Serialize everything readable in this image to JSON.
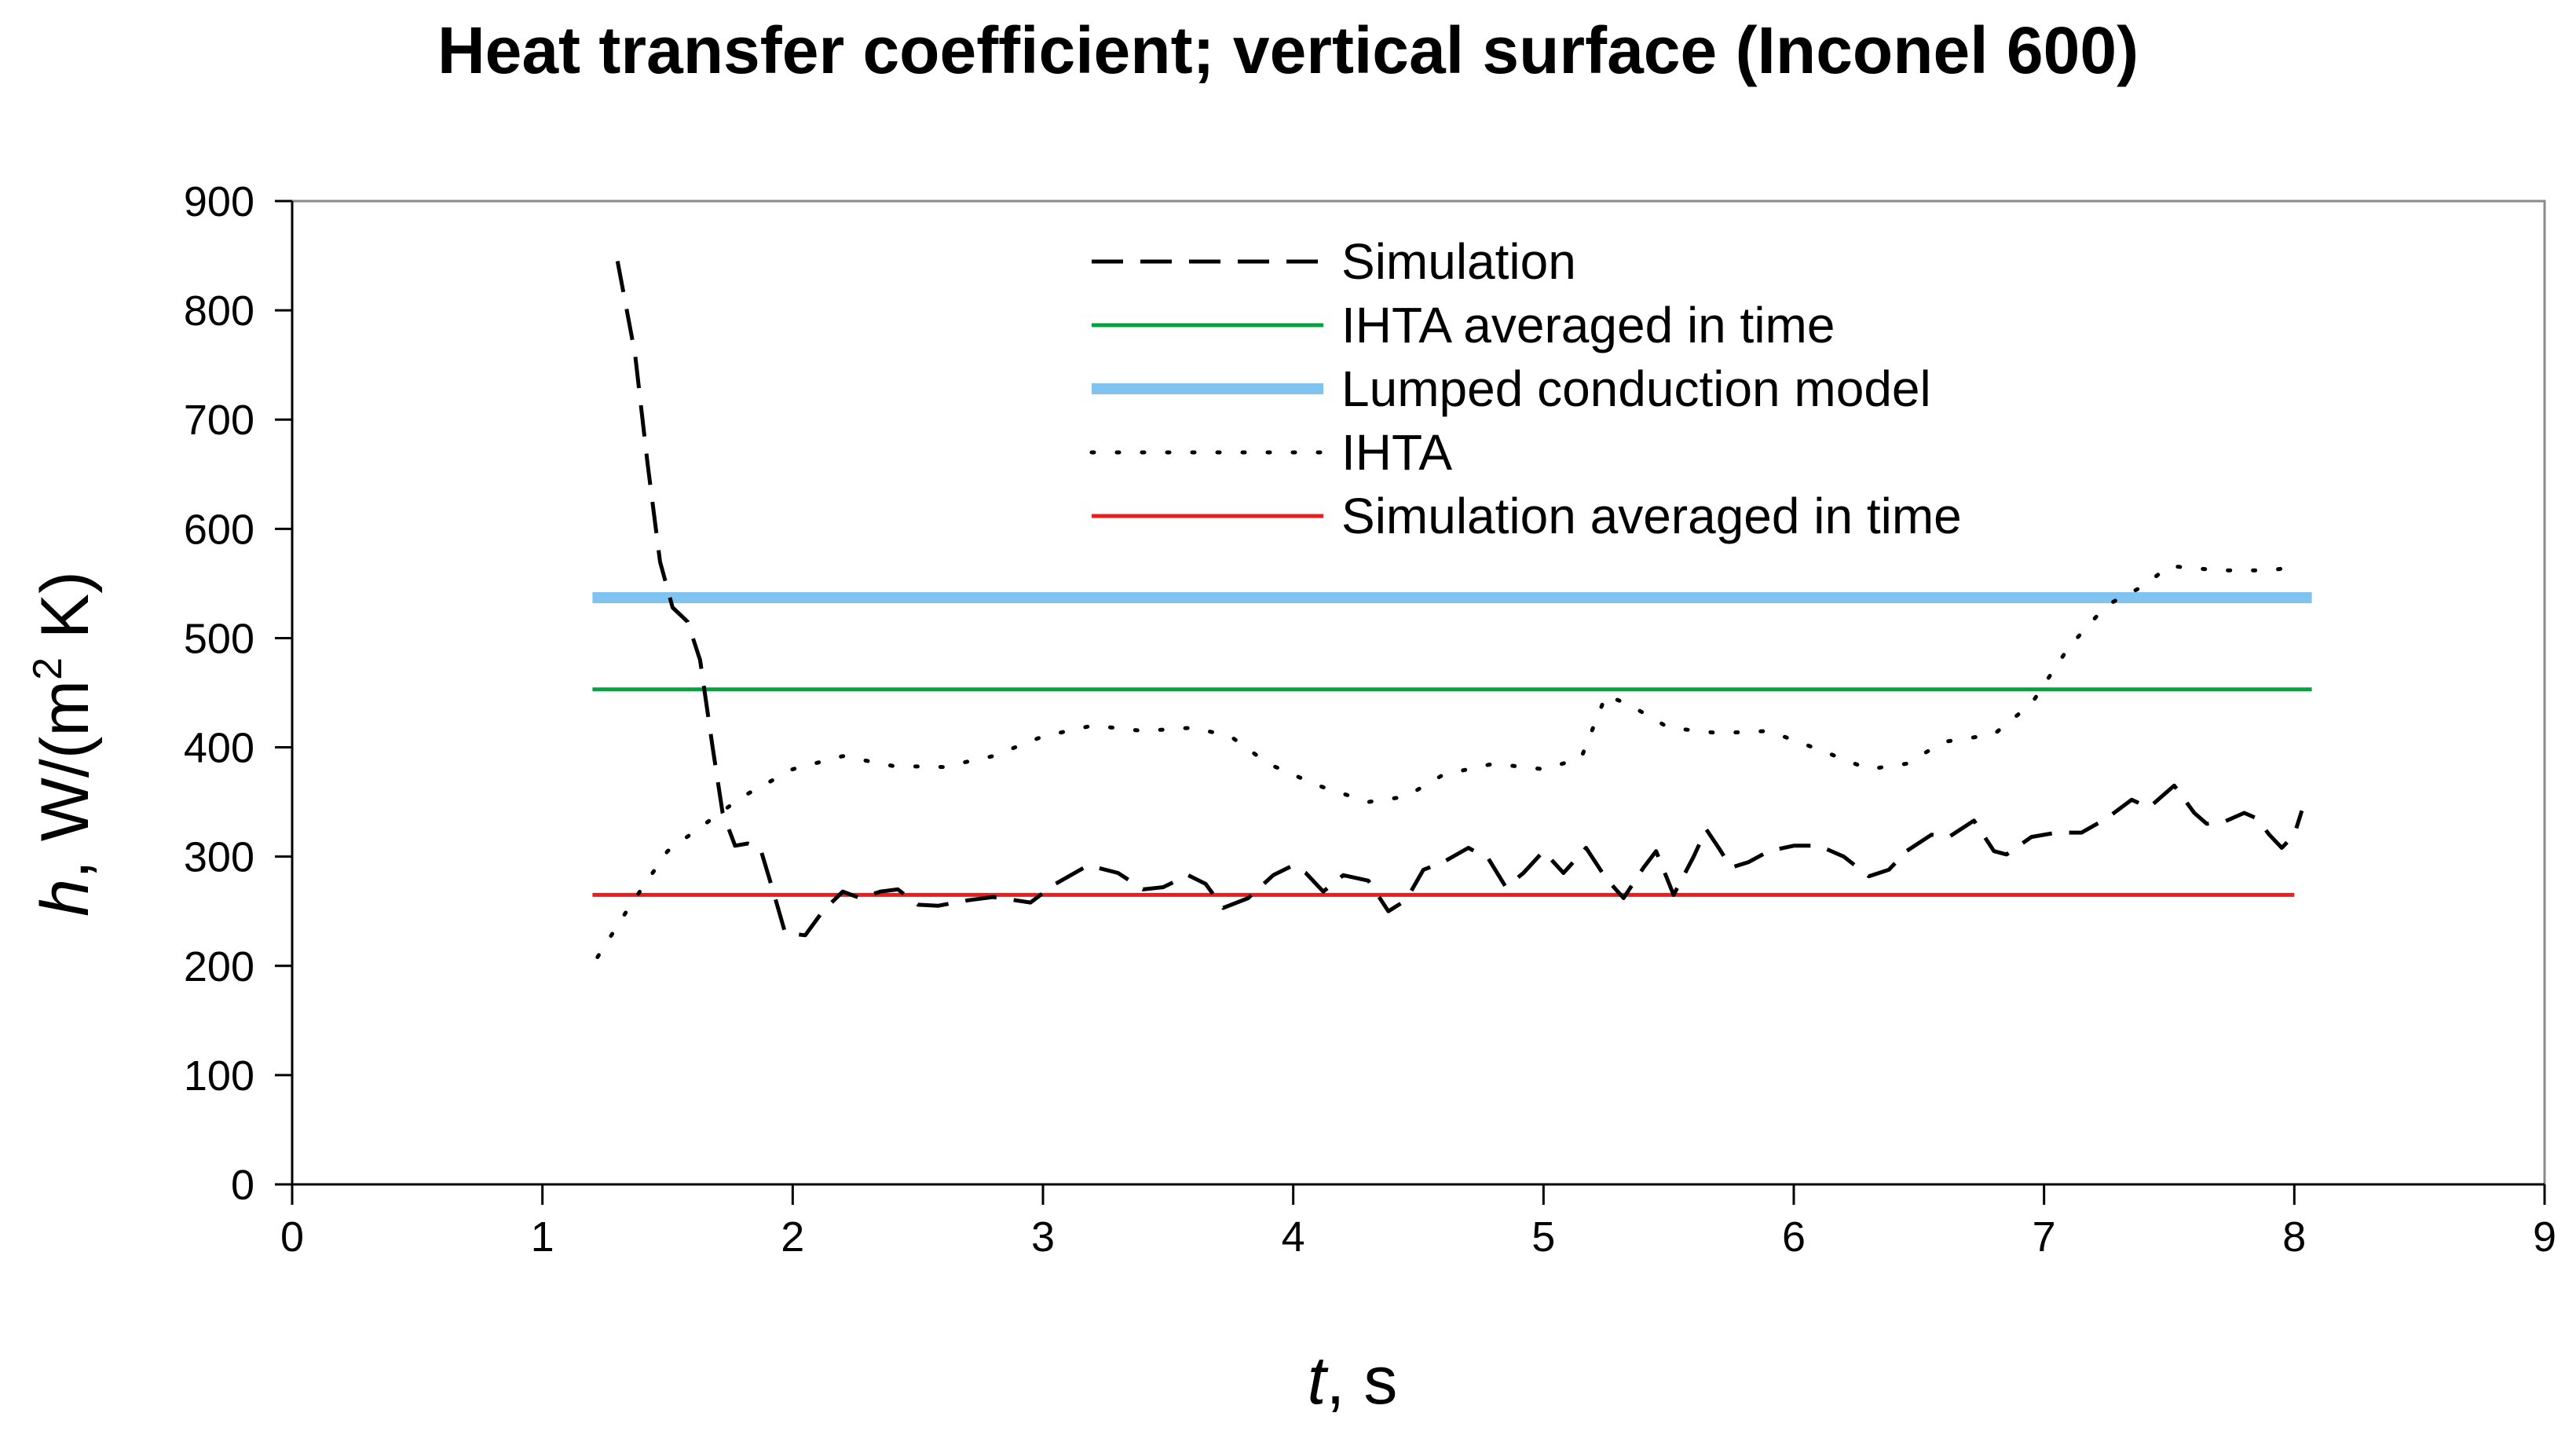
{
  "chart_data": {
    "type": "line",
    "title": "Heat transfer coefficient; vertical surface (Inconel 600)",
    "xlabel": {
      "var": "t",
      "rest": ", s"
    },
    "ylabel": {
      "var": "h",
      "rest1": ", W/(m",
      "sup": "2",
      "rest2": " K)"
    },
    "xlim": [
      0,
      9
    ],
    "ylim": [
      0,
      900
    ],
    "xticks": [
      0,
      1,
      2,
      3,
      4,
      5,
      6,
      7,
      8,
      9
    ],
    "yticks": [
      0,
      100,
      200,
      300,
      400,
      500,
      600,
      700,
      800,
      900
    ],
    "grid": false,
    "legend_position": "top-center",
    "series": [
      {
        "name": "Simulation",
        "style": "dashed",
        "color": "#000000",
        "points": [
          [
            1.3,
            845
          ],
          [
            1.37,
            760
          ],
          [
            1.42,
            660
          ],
          [
            1.47,
            570
          ],
          [
            1.52,
            528
          ],
          [
            1.58,
            515
          ],
          [
            1.63,
            480
          ],
          [
            1.68,
            400
          ],
          [
            1.72,
            340
          ],
          [
            1.77,
            310
          ],
          [
            1.82,
            312
          ],
          [
            1.87,
            308
          ],
          [
            1.92,
            270
          ],
          [
            1.97,
            230
          ],
          [
            2.05,
            228
          ],
          [
            2.12,
            250
          ],
          [
            2.2,
            268
          ],
          [
            2.27,
            262
          ],
          [
            2.35,
            268
          ],
          [
            2.42,
            270
          ],
          [
            2.5,
            256
          ],
          [
            2.58,
            255
          ],
          [
            2.7,
            260
          ],
          [
            2.8,
            263
          ],
          [
            2.95,
            258
          ],
          [
            3.05,
            275
          ],
          [
            3.18,
            292
          ],
          [
            3.3,
            285
          ],
          [
            3.4,
            270
          ],
          [
            3.48,
            272
          ],
          [
            3.58,
            283
          ],
          [
            3.65,
            275
          ],
          [
            3.72,
            253
          ],
          [
            3.82,
            262
          ],
          [
            3.92,
            283
          ],
          [
            4.0,
            292
          ],
          [
            4.05,
            285
          ],
          [
            4.12,
            268
          ],
          [
            4.2,
            283
          ],
          [
            4.3,
            278
          ],
          [
            4.38,
            250
          ],
          [
            4.45,
            260
          ],
          [
            4.52,
            288
          ],
          [
            4.6,
            295
          ],
          [
            4.7,
            308
          ],
          [
            4.78,
            298
          ],
          [
            4.85,
            272
          ],
          [
            4.92,
            285
          ],
          [
            5.0,
            305
          ],
          [
            5.08,
            285
          ],
          [
            5.17,
            308
          ],
          [
            5.25,
            280
          ],
          [
            5.32,
            262
          ],
          [
            5.4,
            290
          ],
          [
            5.45,
            305
          ],
          [
            5.52,
            265
          ],
          [
            5.6,
            300
          ],
          [
            5.65,
            325
          ],
          [
            5.7,
            308
          ],
          [
            5.75,
            290
          ],
          [
            5.82,
            295
          ],
          [
            5.9,
            305
          ],
          [
            6.0,
            310
          ],
          [
            6.1,
            310
          ],
          [
            6.2,
            300
          ],
          [
            6.3,
            282
          ],
          [
            6.38,
            288
          ],
          [
            6.45,
            305
          ],
          [
            6.55,
            320
          ],
          [
            6.62,
            318
          ],
          [
            6.72,
            333
          ],
          [
            6.8,
            305
          ],
          [
            6.85,
            302
          ],
          [
            6.95,
            318
          ],
          [
            7.05,
            322
          ],
          [
            7.15,
            322
          ],
          [
            7.25,
            335
          ],
          [
            7.35,
            352
          ],
          [
            7.42,
            345
          ],
          [
            7.52,
            365
          ],
          [
            7.6,
            340
          ],
          [
            7.65,
            330
          ],
          [
            7.72,
            332
          ],
          [
            7.8,
            340
          ],
          [
            7.85,
            335
          ],
          [
            7.9,
            320
          ],
          [
            7.95,
            308
          ],
          [
            8.0,
            320
          ],
          [
            8.03,
            342
          ]
        ]
      },
      {
        "name": "IHTA averaged in time",
        "style": "solid",
        "color": "#00a33c",
        "points": [
          [
            1.2,
            453
          ],
          [
            8.07,
            453
          ]
        ]
      },
      {
        "name": "Lumped conduction model",
        "style": "thick",
        "color": "#7fc3f0",
        "points": [
          [
            1.2,
            537
          ],
          [
            8.07,
            537
          ]
        ]
      },
      {
        "name": "IHTA",
        "style": "dotted",
        "color": "#000000",
        "points": [
          [
            1.22,
            208
          ],
          [
            1.35,
            255
          ],
          [
            1.5,
            305
          ],
          [
            1.65,
            330
          ],
          [
            1.8,
            355
          ],
          [
            2.0,
            380
          ],
          [
            2.2,
            392
          ],
          [
            2.4,
            383
          ],
          [
            2.6,
            382
          ],
          [
            2.8,
            392
          ],
          [
            3.0,
            410
          ],
          [
            3.2,
            420
          ],
          [
            3.4,
            415
          ],
          [
            3.6,
            418
          ],
          [
            3.75,
            410
          ],
          [
            3.9,
            385
          ],
          [
            4.1,
            365
          ],
          [
            4.3,
            350
          ],
          [
            4.45,
            355
          ],
          [
            4.6,
            375
          ],
          [
            4.8,
            385
          ],
          [
            5.0,
            380
          ],
          [
            5.15,
            390
          ],
          [
            5.25,
            448
          ],
          [
            5.35,
            438
          ],
          [
            5.5,
            418
          ],
          [
            5.7,
            413
          ],
          [
            5.9,
            415
          ],
          [
            6.1,
            398
          ],
          [
            6.3,
            380
          ],
          [
            6.45,
            385
          ],
          [
            6.6,
            405
          ],
          [
            6.8,
            412
          ],
          [
            6.95,
            440
          ],
          [
            7.1,
            492
          ],
          [
            7.25,
            530
          ],
          [
            7.4,
            548
          ],
          [
            7.5,
            566
          ],
          [
            7.7,
            562
          ],
          [
            7.9,
            562
          ],
          [
            8.0,
            565
          ]
        ]
      },
      {
        "name": "Simulation averaged in time",
        "style": "solid",
        "color": "#ee1c1c",
        "points": [
          [
            1.2,
            265
          ],
          [
            8.0,
            265
          ]
        ]
      }
    ]
  }
}
